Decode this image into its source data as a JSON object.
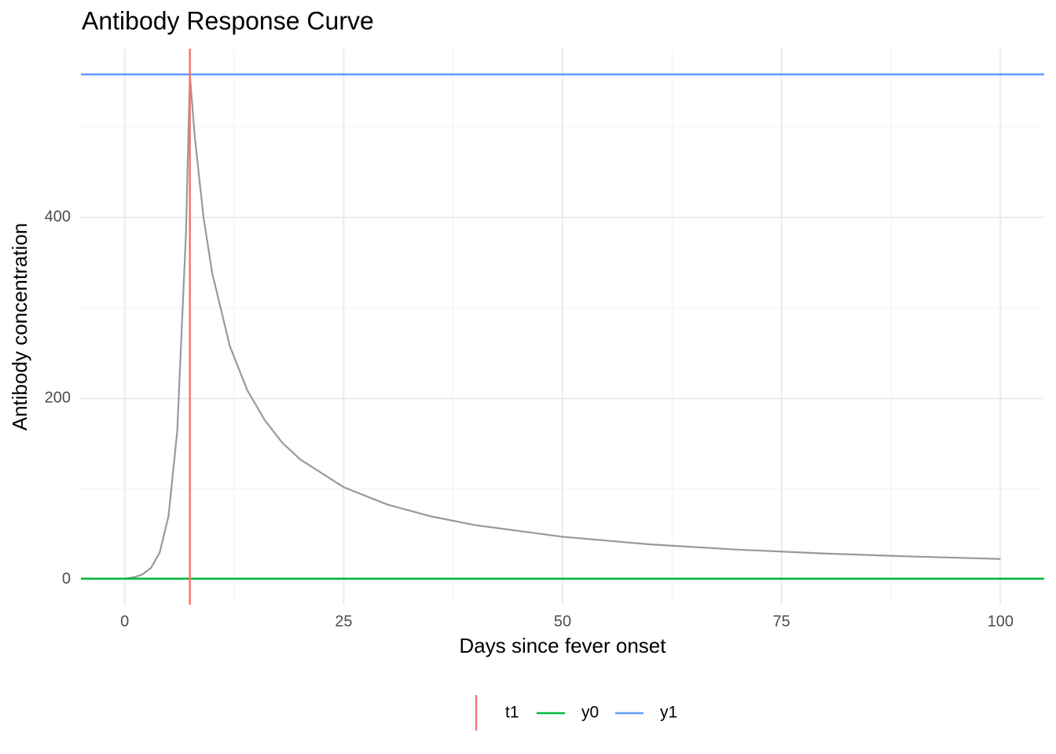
{
  "chart_data": {
    "type": "line",
    "title": "Antibody Response Curve",
    "x_label": "Days since fever onset",
    "y_label": "Antibody concentration",
    "x": [
      0,
      1,
      2,
      3,
      4,
      5,
      6,
      7,
      7.44,
      8,
      9,
      10,
      12,
      14,
      16,
      18,
      20,
      25,
      30,
      35,
      40,
      50,
      60,
      70,
      80,
      90,
      100
    ],
    "series": [
      {
        "color": "#999999",
        "values": [
          1,
          2.34,
          5.47,
          12.8,
          30,
          70.1,
          164,
          384,
          558,
          489,
          400,
          338,
          258,
          209,
          176,
          151,
          133,
          102,
          82.8,
          69.7,
          60.1,
          47.2,
          38.8,
          33,
          28.7,
          25.4,
          22.7
        ]
      }
    ],
    "vlines": [
      {
        "name": "t1",
        "value": 7.44,
        "color": "#f8766d"
      }
    ],
    "hlines": [
      {
        "name": "y0",
        "value": 1,
        "color": "#00ba38"
      },
      {
        "name": "y1",
        "value": 558,
        "color": "#619cff"
      }
    ],
    "xlim": [
      -5,
      105
    ],
    "ylim": [
      -27.9,
      586.4
    ],
    "xticks": [
      0,
      25,
      50,
      75,
      100
    ],
    "yticks": [
      0,
      200,
      400
    ],
    "xminor_ticks": [
      12.5,
      37.5,
      62.5,
      87.5
    ],
    "yminor_ticks": [
      100,
      300,
      500
    ],
    "grid": true,
    "legend_position": "bottom"
  }
}
